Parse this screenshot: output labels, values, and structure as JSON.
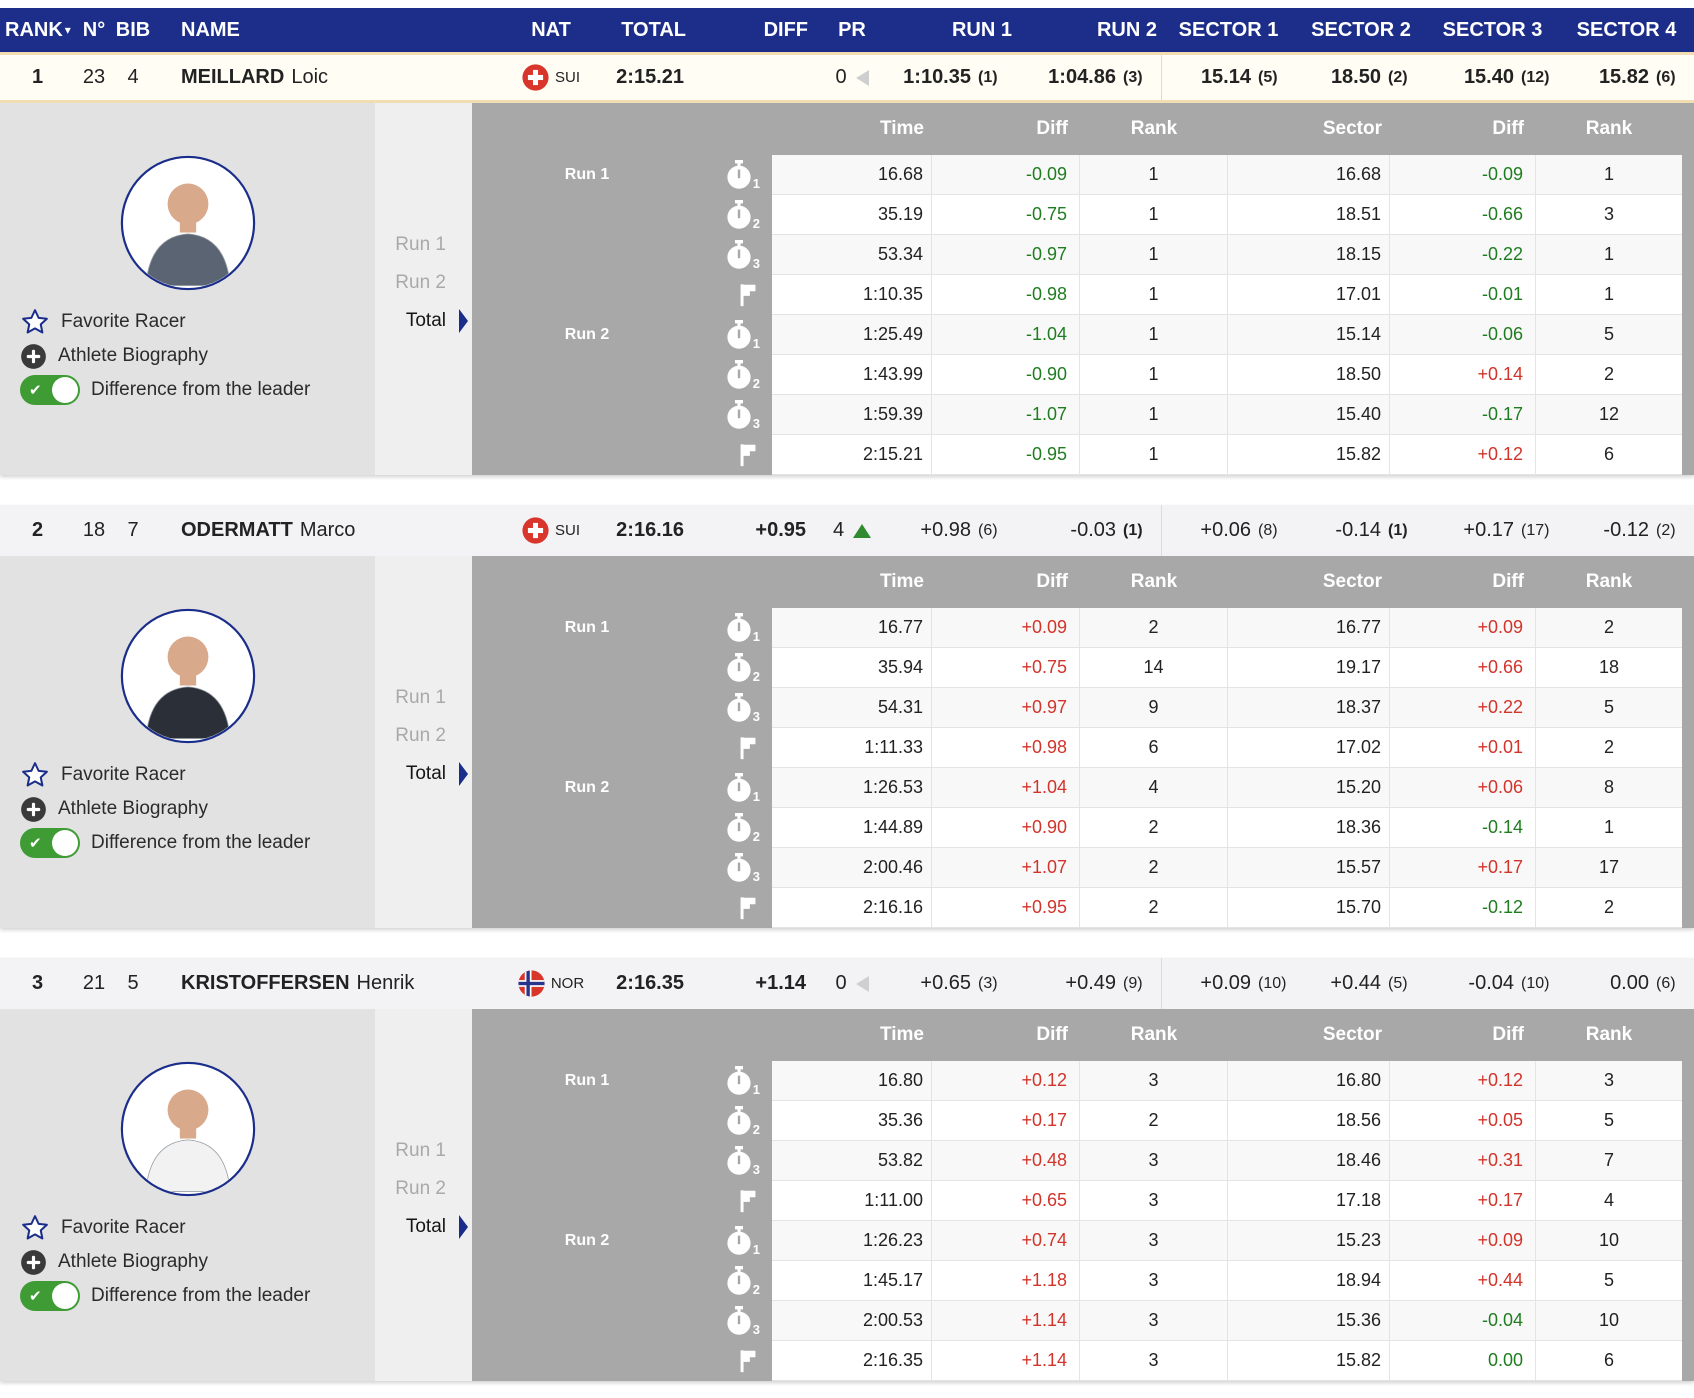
{
  "colors": {
    "header-bg": "#1c2e8a",
    "accent-blue": "#1a2d8a",
    "green": "#1f7d1f",
    "red": "#d2342a",
    "marker-green": "#2e8b2e",
    "marker-red": "#ea3423",
    "leader-border": "#f2ddb2",
    "toggle-green": "#3f9c35",
    "table-gray": "#a8a8a8"
  },
  "header": {
    "columns": [
      "RANK",
      "N°",
      "BIB",
      "NAME",
      "NAT",
      "TOTAL",
      "DIFF",
      "PR",
      "RUN 1",
      "RUN 2",
      "SECTOR 1",
      "SECTOR 2",
      "SECTOR 3",
      "SECTOR 4"
    ],
    "sort_column": "RANK"
  },
  "panel": {
    "favorite": "Favorite Racer",
    "bio": "Athlete Biography",
    "toggle": "Difference from the leader",
    "run1": "Run 1",
    "run2": "Run 2",
    "total": "Total"
  },
  "detail_table": {
    "columns": [
      "Time",
      "Diff",
      "Rank",
      "Sector",
      "Diff",
      "Rank"
    ],
    "run1": "Run 1",
    "run2": "Run 2"
  },
  "racers": [
    {
      "rank": "1",
      "n": "23",
      "bib": "4",
      "last": "MEILLARD",
      "first": "Loic",
      "nat": "SUI",
      "total": "2:15.21",
      "diff": "",
      "pr": "0",
      "pr_icon": "prev-gray",
      "leader": true,
      "avatar_shirt": "#5a6472",
      "run1": {
        "v": "1:10.35",
        "r": "(1)"
      },
      "run2": {
        "v": "1:04.86",
        "r": "(3)"
      },
      "sectors": [
        {
          "v": "15.14",
          "r": "(5)"
        },
        {
          "v": "18.50",
          "r": "(2)"
        },
        {
          "v": "15.40",
          "r": "(12)"
        },
        {
          "v": "15.82",
          "r": "(6)"
        }
      ],
      "rows": [
        {
          "cp": "split-1",
          "time": "16.68",
          "diff": "-0.09",
          "rank": "1",
          "sector": "16.68",
          "sdiff": "-0.09",
          "srank": "1"
        },
        {
          "cp": "split-2",
          "time": "35.19",
          "diff": "-0.75",
          "rank": "1",
          "sector": "18.51",
          "sdiff": "-0.66",
          "srank": "3"
        },
        {
          "cp": "split-3",
          "time": "53.34",
          "diff": "-0.97",
          "rank": "1",
          "sector": "18.15",
          "sdiff": "-0.22",
          "srank": "1"
        },
        {
          "cp": "finish",
          "time": "1:10.35",
          "diff": "-0.98",
          "rank": "1",
          "sector": "17.01",
          "sdiff": "-0.01",
          "srank": "1"
        },
        {
          "cp": "split-1",
          "time": "1:25.49",
          "diff": "-1.04",
          "rank": "1",
          "sector": "15.14",
          "sdiff": "-0.06",
          "srank": "5"
        },
        {
          "cp": "split-2",
          "time": "1:43.99",
          "diff": "-0.90",
          "rank": "1",
          "sector": "18.50",
          "sdiff": "+0.14",
          "srank": "2"
        },
        {
          "cp": "split-3",
          "time": "1:59.39",
          "diff": "-1.07",
          "rank": "1",
          "sector": "15.40",
          "sdiff": "-0.17",
          "srank": "12"
        },
        {
          "cp": "finish",
          "time": "2:15.21",
          "diff": "-0.95",
          "rank": "1",
          "sector": "15.82",
          "sdiff": "+0.12",
          "srank": "6"
        }
      ]
    },
    {
      "rank": "2",
      "n": "18",
      "bib": "7",
      "last": "ODERMATT",
      "first": "Marco",
      "nat": "SUI",
      "total": "2:16.16",
      "diff": "+0.95",
      "pr": "4",
      "pr_icon": "up-green",
      "leader": false,
      "avatar_shirt": "#2b3038",
      "run1": {
        "v": "+0.98",
        "r": "(6)"
      },
      "run2": {
        "v": "-0.03",
        "r": "(1)"
      },
      "sectors": [
        {
          "v": "+0.06",
          "r": "(8)"
        },
        {
          "v": "-0.14",
          "r": "(1)"
        },
        {
          "v": "+0.17",
          "r": "(17)"
        },
        {
          "v": "-0.12",
          "r": "(2)"
        }
      ],
      "rows": [
        {
          "cp": "split-1",
          "time": "16.77",
          "diff": "+0.09",
          "rank": "2",
          "sector": "16.77",
          "sdiff": "+0.09",
          "srank": "2"
        },
        {
          "cp": "split-2",
          "time": "35.94",
          "diff": "+0.75",
          "rank": "14",
          "sector": "19.17",
          "sdiff": "+0.66",
          "srank": "18"
        },
        {
          "cp": "split-3",
          "time": "54.31",
          "diff": "+0.97",
          "rank": "9",
          "sector": "18.37",
          "sdiff": "+0.22",
          "srank": "5"
        },
        {
          "cp": "finish",
          "time": "1:11.33",
          "diff": "+0.98",
          "rank": "6",
          "sector": "17.02",
          "sdiff": "+0.01",
          "srank": "2"
        },
        {
          "cp": "split-1",
          "time": "1:26.53",
          "diff": "+1.04",
          "rank": "4",
          "sector": "15.20",
          "sdiff": "+0.06",
          "srank": "8"
        },
        {
          "cp": "split-2",
          "time": "1:44.89",
          "diff": "+0.90",
          "rank": "2",
          "sector": "18.36",
          "sdiff": "-0.14",
          "srank": "1"
        },
        {
          "cp": "split-3",
          "time": "2:00.46",
          "diff": "+1.07",
          "rank": "2",
          "sector": "15.57",
          "sdiff": "+0.17",
          "srank": "17"
        },
        {
          "cp": "finish",
          "time": "2:16.16",
          "diff": "+0.95",
          "rank": "2",
          "sector": "15.70",
          "sdiff": "-0.12",
          "srank": "2"
        }
      ]
    },
    {
      "rank": "3",
      "n": "21",
      "bib": "5",
      "last": "KRISTOFFERSEN",
      "first": "Henrik",
      "nat": "NOR",
      "total": "2:16.35",
      "diff": "+1.14",
      "pr": "0",
      "pr_icon": "prev-gray",
      "leader": false,
      "avatar_shirt": "#f2f2f2",
      "run1": {
        "v": "+0.65",
        "r": "(3)"
      },
      "run2": {
        "v": "+0.49",
        "r": "(9)"
      },
      "sectors": [
        {
          "v": "+0.09",
          "r": "(10)"
        },
        {
          "v": "+0.44",
          "r": "(5)"
        },
        {
          "v": "-0.04",
          "r": "(10)"
        },
        {
          "v": "0.00",
          "r": "(6)"
        }
      ],
      "rows": [
        {
          "cp": "split-1",
          "time": "16.80",
          "diff": "+0.12",
          "rank": "3",
          "sector": "16.80",
          "sdiff": "+0.12",
          "srank": "3"
        },
        {
          "cp": "split-2",
          "time": "35.36",
          "diff": "+0.17",
          "rank": "2",
          "sector": "18.56",
          "sdiff": "+0.05",
          "srank": "5"
        },
        {
          "cp": "split-3",
          "time": "53.82",
          "diff": "+0.48",
          "rank": "3",
          "sector": "18.46",
          "sdiff": "+0.31",
          "srank": "7"
        },
        {
          "cp": "finish",
          "time": "1:11.00",
          "diff": "+0.65",
          "rank": "3",
          "sector": "17.18",
          "sdiff": "+0.17",
          "srank": "4"
        },
        {
          "cp": "split-1",
          "time": "1:26.23",
          "diff": "+0.74",
          "rank": "3",
          "sector": "15.23",
          "sdiff": "+0.09",
          "srank": "10"
        },
        {
          "cp": "split-2",
          "time": "1:45.17",
          "diff": "+1.18",
          "rank": "3",
          "sector": "18.94",
          "sdiff": "+0.44",
          "srank": "5"
        },
        {
          "cp": "split-3",
          "time": "2:00.53",
          "diff": "+1.14",
          "rank": "3",
          "sector": "15.36",
          "sdiff": "-0.04",
          "srank": "10"
        },
        {
          "cp": "finish",
          "time": "2:16.35",
          "diff": "+1.14",
          "rank": "3",
          "sector": "15.82",
          "sdiff": "0.00",
          "srank": "6"
        }
      ]
    }
  ]
}
